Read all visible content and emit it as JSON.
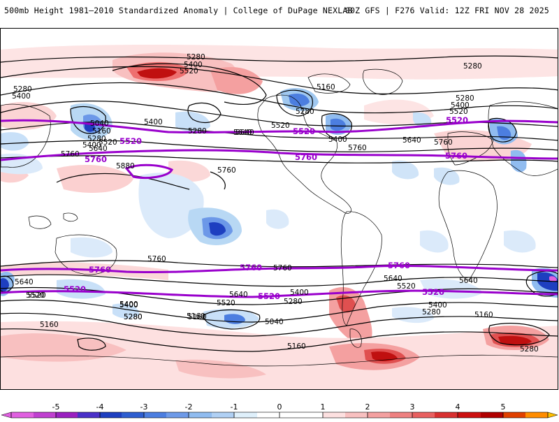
{
  "header": {
    "left_title": "500mb Height 1981–2010 Standardized Anomaly | College of DuPage NEXLAB",
    "right_title": "00Z GFS | F276 Valid: 12Z FRI NOV 28 2025"
  },
  "map": {
    "black_contour_labels": [
      {
        "id": "c1",
        "text": "5280"
      },
      {
        "id": "c2",
        "text": "5400"
      },
      {
        "id": "c3",
        "text": "5520"
      },
      {
        "id": "c4",
        "text": "5280"
      },
      {
        "id": "c5",
        "text": "5400"
      },
      {
        "id": "c6",
        "text": "5040"
      },
      {
        "id": "c7",
        "text": "5160"
      },
      {
        "id": "c8",
        "text": "5280"
      },
      {
        "id": "c9",
        "text": "5400"
      },
      {
        "id": "c10",
        "text": "5520"
      },
      {
        "id": "c11",
        "text": "5640"
      },
      {
        "id": "c12",
        "text": "5400"
      },
      {
        "id": "c13",
        "text": "5280"
      },
      {
        "id": "c14",
        "text": "5640"
      },
      {
        "id": "c15",
        "text": "5760"
      },
      {
        "id": "c16",
        "text": "5880"
      },
      {
        "id": "c17",
        "text": "5760"
      },
      {
        "id": "c18",
        "text": "5160"
      },
      {
        "id": "c19",
        "text": "5280"
      },
      {
        "id": "c20",
        "text": "5520"
      },
      {
        "id": "c21",
        "text": "5400"
      },
      {
        "id": "c22",
        "text": "5760"
      },
      {
        "id": "c23",
        "text": "5640"
      },
      {
        "id": "c24",
        "text": "5280"
      },
      {
        "id": "c25",
        "text": "5280"
      },
      {
        "id": "c26",
        "text": "5400"
      },
      {
        "id": "c27",
        "text": "5520"
      },
      {
        "id": "c28",
        "text": "5760"
      },
      {
        "id": "c29",
        "text": "5640"
      },
      {
        "id": "c30",
        "text": "5760"
      },
      {
        "id": "c31",
        "text": "5520"
      },
      {
        "id": "c32",
        "text": "5400"
      },
      {
        "id": "c33",
        "text": "5280"
      },
      {
        "id": "c34",
        "text": "5160"
      },
      {
        "id": "c35",
        "text": "5640"
      },
      {
        "id": "c36",
        "text": "5520"
      },
      {
        "id": "c37",
        "text": "5400"
      },
      {
        "id": "c38",
        "text": "5280"
      },
      {
        "id": "c39",
        "text": "5160"
      },
      {
        "id": "c40",
        "text": "5040"
      },
      {
        "id": "c41",
        "text": "5160"
      },
      {
        "id": "c42",
        "text": "5640"
      },
      {
        "id": "c43",
        "text": "5520"
      },
      {
        "id": "c44",
        "text": "5400"
      },
      {
        "id": "c45",
        "text": "5280"
      },
      {
        "id": "c46",
        "text": "5760"
      },
      {
        "id": "c47",
        "text": "5640"
      },
      {
        "id": "c48",
        "text": "5520"
      },
      {
        "id": "c49",
        "text": "5400"
      },
      {
        "id": "c50",
        "text": "5280"
      },
      {
        "id": "c51",
        "text": "5160"
      },
      {
        "id": "c52",
        "text": "5280"
      },
      {
        "id": "c53",
        "text": "5640"
      },
      {
        "id": "c54",
        "text": "5160"
      }
    ],
    "purple_contour_labels": [
      {
        "id": "p1",
        "text": "5520"
      },
      {
        "id": "p2",
        "text": "5520"
      },
      {
        "id": "p3",
        "text": "5520"
      },
      {
        "id": "p4",
        "text": "5760"
      },
      {
        "id": "p5",
        "text": "5760"
      },
      {
        "id": "p6",
        "text": "5760"
      },
      {
        "id": "p7",
        "text": "5760"
      },
      {
        "id": "p8",
        "text": "5760"
      },
      {
        "id": "p9",
        "text": "5760"
      },
      {
        "id": "p10",
        "text": "5520"
      },
      {
        "id": "p11",
        "text": "5520"
      },
      {
        "id": "p12",
        "text": "5520"
      }
    ],
    "colors": {
      "positive_light": "#f8c8c8",
      "positive_med": "#f08a8a",
      "positive_strong": "#e05050",
      "positive_deep": "#c00000",
      "negative_light": "#c8e0f8",
      "negative_med": "#90bcf0",
      "negative_strong": "#4c7ee0",
      "negative_deep": "#1e3fc0",
      "purple": "#9900cc"
    }
  },
  "colorbar": {
    "ticks": [
      "-5",
      "-4",
      "-3",
      "-2",
      "-1",
      "0",
      "1",
      "2",
      "3",
      "4",
      "5"
    ],
    "colors": [
      "#e060e0",
      "#9a20c0",
      "#1e3fc0",
      "#4c7ee0",
      "#90bcf0",
      "#dff0fb",
      "#ffffff",
      "#ffffff",
      "#fcd8d8",
      "#f4a0a0",
      "#e86060",
      "#cc1010",
      "#a00000",
      "#ff8c00",
      "#ffc000"
    ]
  }
}
